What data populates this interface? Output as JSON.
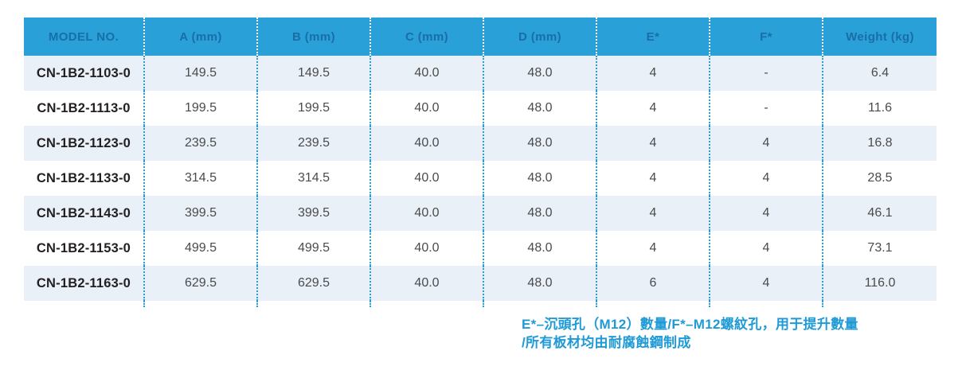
{
  "table": {
    "columns": [
      "MODEL NO.",
      "A (mm)",
      "B (mm)",
      "C (mm)",
      "D (mm)",
      "E*",
      "F*",
      "Weight (kg)"
    ],
    "rows": [
      [
        "CN-1B2-1103-0",
        "149.5",
        "149.5",
        "40.0",
        "48.0",
        "4",
        "-",
        "6.4"
      ],
      [
        "CN-1B2-1113-0",
        "199.5",
        "199.5",
        "40.0",
        "48.0",
        "4",
        "-",
        "11.6"
      ],
      [
        "CN-1B2-1123-0",
        "239.5",
        "239.5",
        "40.0",
        "48.0",
        "4",
        "4",
        "16.8"
      ],
      [
        "CN-1B2-1133-0",
        "314.5",
        "314.5",
        "40.0",
        "48.0",
        "4",
        "4",
        "28.5"
      ],
      [
        "CN-1B2-1143-0",
        "399.5",
        "399.5",
        "40.0",
        "48.0",
        "4",
        "4",
        "46.1"
      ],
      [
        "CN-1B2-1153-0",
        "499.5",
        "499.5",
        "40.0",
        "48.0",
        "4",
        "4",
        "73.1"
      ],
      [
        "CN-1B2-1163-0",
        "629.5",
        "629.5",
        "40.0",
        "48.0",
        "6",
        "4",
        "116.0"
      ]
    ]
  },
  "footnote": {
    "e_label": "E*",
    "e_text": "–沉頭孔（M12）數量/",
    "f_label": "F*",
    "f_text": "–M12螺紋孔，用于提升數量",
    "line2": "/所有板材均由耐腐蝕鋼制成"
  },
  "colors": {
    "header_bg": "#2AA0D9",
    "header_text": "#196EA6",
    "row_alt_bg": "#E9F0F8",
    "divider_dots": "#2AA0D9",
    "header_divider_dots": "#FFFFFF",
    "model_text": "#231F20",
    "body_text": "#4B4B4B",
    "footnote_text": "#1F9AD6"
  }
}
